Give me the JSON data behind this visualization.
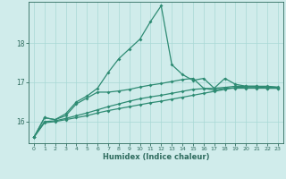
{
  "xlabel": "Humidex (Indice chaleur)",
  "x_values": [
    0,
    1,
    2,
    3,
    4,
    5,
    6,
    7,
    8,
    9,
    10,
    11,
    12,
    13,
    14,
    15,
    16,
    17,
    18,
    19,
    20,
    21,
    22,
    23
  ],
  "line_main": [
    15.6,
    16.1,
    16.05,
    16.2,
    16.5,
    16.65,
    16.85,
    17.25,
    17.6,
    17.85,
    18.1,
    18.55,
    18.95,
    17.45,
    17.2,
    17.05,
    17.1,
    16.85,
    17.1,
    16.95,
    16.9,
    16.9,
    16.85,
    16.85
  ],
  "line_med": [
    15.6,
    16.1,
    16.05,
    16.15,
    16.45,
    16.6,
    16.75,
    16.75,
    16.78,
    16.82,
    16.88,
    16.93,
    16.97,
    17.02,
    17.07,
    17.1,
    16.85,
    16.8,
    16.85,
    16.85,
    16.85,
    16.85,
    16.85,
    16.85
  ],
  "line_low1": [
    15.6,
    16.0,
    16.02,
    16.08,
    16.15,
    16.22,
    16.3,
    16.38,
    16.45,
    16.52,
    16.58,
    16.63,
    16.67,
    16.72,
    16.77,
    16.82,
    16.84,
    16.85,
    16.87,
    16.9,
    16.9,
    16.9,
    16.9,
    16.88
  ],
  "line_low2": [
    15.6,
    15.97,
    16.0,
    16.05,
    16.1,
    16.15,
    16.22,
    16.28,
    16.33,
    16.38,
    16.43,
    16.48,
    16.52,
    16.57,
    16.62,
    16.67,
    16.72,
    16.77,
    16.82,
    16.87,
    16.88,
    16.88,
    16.88,
    16.87
  ],
  "line_color": "#2e8b73",
  "bg_color": "#d0eceb",
  "grid_color": "#a8d8d5",
  "axis_color": "#2e6b5e",
  "ylim": [
    15.45,
    19.05
  ],
  "yticks": [
    16,
    17,
    18
  ],
  "xticks": [
    0,
    1,
    2,
    3,
    4,
    5,
    6,
    7,
    8,
    9,
    10,
    11,
    12,
    13,
    14,
    15,
    16,
    17,
    18,
    19,
    20,
    21,
    22,
    23
  ]
}
